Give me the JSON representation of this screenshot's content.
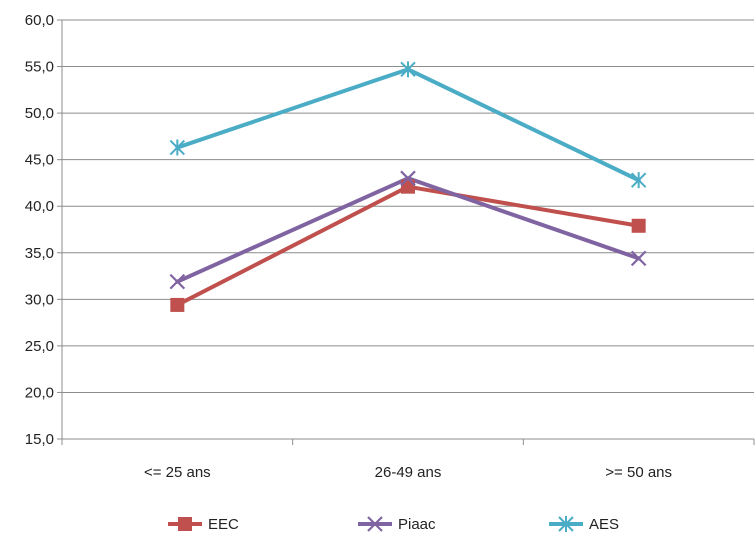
{
  "chart_data": {
    "type": "line",
    "categories": [
      "<= 25 ans",
      "26-49 ans",
      ">= 50 ans"
    ],
    "series": [
      {
        "name": "EEC",
        "values": [
          29.4,
          42.1,
          37.9
        ],
        "color": "#C0504D",
        "marker": "square"
      },
      {
        "name": "Piaac",
        "values": [
          31.9,
          43.0,
          34.4
        ],
        "color": "#8064A2",
        "marker": "x"
      },
      {
        "name": "AES",
        "values": [
          46.3,
          54.7,
          42.8
        ],
        "color": "#4BACC6",
        "marker": "star"
      }
    ],
    "yticks": [
      "15,0",
      "20,0",
      "25,0",
      "30,0",
      "35,0",
      "40,0",
      "45,0",
      "50,0",
      "55,0",
      "60,0"
    ],
    "ylim": [
      15,
      60
    ],
    "grid": true,
    "legend": "bottom"
  }
}
